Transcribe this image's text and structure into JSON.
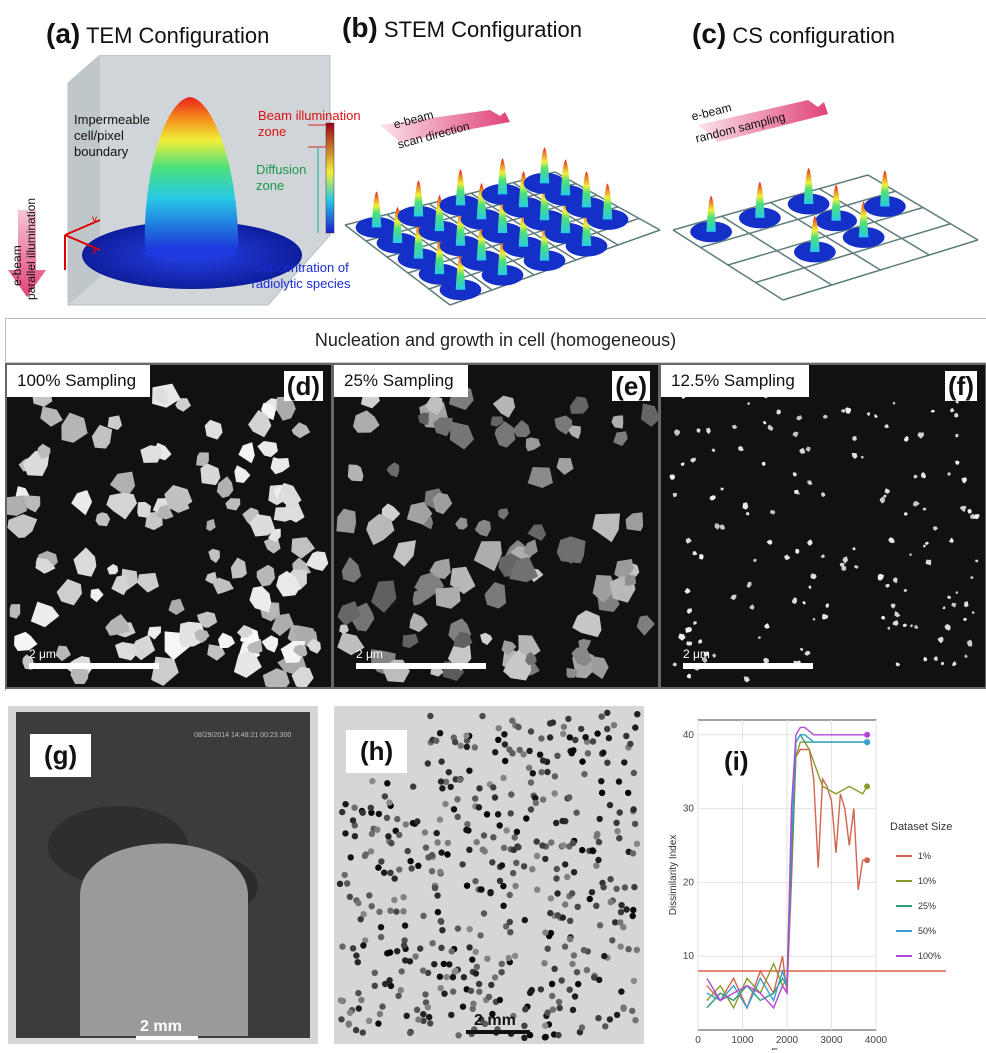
{
  "panels": {
    "a": {
      "letter": "(a)",
      "title": "TEM Configuration",
      "impermeable": "Impermeable cell/pixel boundary",
      "beam_zone": "Beam illumination zone",
      "diffusion_zone": "Diffusion zone",
      "concentration": "Concentration of radiolytic species",
      "ebeam": "e-beam",
      "parallel": "parallel illumination",
      "axis_y": "y",
      "axis_x": "x"
    },
    "b": {
      "letter": "(b)",
      "title": "STEM Configuration",
      "ebeam": "e-beam",
      "direction": "scan direction"
    },
    "c": {
      "letter": "(c)",
      "title": "CS configuration",
      "ebeam": "e-beam",
      "direction": "random sampling"
    }
  },
  "row2": {
    "title": "Nucleation and growth in cell (homogeneous)",
    "d": {
      "tag": "100% Sampling",
      "letter": "(d)",
      "scale": "2 μm"
    },
    "e": {
      "tag": "25% Sampling",
      "letter": "(e)",
      "scale": "2 μm"
    },
    "f": {
      "tag": "12.5% Sampling",
      "letter": "(f)",
      "scale": "2 μm"
    }
  },
  "row3": {
    "g": {
      "letter": "(g)",
      "scale": "2 mm",
      "stamp": "08/29/2014 14:48:21 00:23.300"
    },
    "h": {
      "letter": "(h)",
      "scale": "2 mm"
    },
    "i": {
      "letter": "(i)"
    }
  },
  "chart_data": {
    "type": "line",
    "xlabel": "Frame",
    "ylabel": "Dissimilarity Index",
    "xlim": [
      0,
      4000
    ],
    "ylim": [
      0,
      42
    ],
    "xticks": [
      0,
      1000,
      2000,
      3000,
      4000
    ],
    "yticks": [
      10,
      20,
      30,
      40
    ],
    "legend_title": "Dataset Size",
    "legend_position": "right",
    "threshold": 8,
    "threshold_color": "#e0604a",
    "series": [
      {
        "name": "1%",
        "color": "#d2644f",
        "x": [
          200,
          500,
          800,
          1100,
          1400,
          1700,
          1900,
          2000,
          2100,
          2200,
          2300,
          2400,
          2500,
          2600,
          2700,
          2800,
          2900,
          3000,
          3100,
          3200,
          3300,
          3400,
          3500,
          3600,
          3700,
          3800
        ],
        "y": [
          6,
          4,
          7,
          3,
          8,
          5,
          10,
          5,
          20,
          37,
          38,
          38,
          38,
          34,
          22,
          34,
          33,
          31,
          24,
          32,
          30,
          25,
          30,
          19,
          23,
          23
        ]
      },
      {
        "name": "10%",
        "color": "#8a9a2a",
        "x": [
          200,
          500,
          800,
          1100,
          1400,
          1700,
          1900,
          2000,
          2100,
          2200,
          2300,
          2400,
          2500,
          2800,
          3100,
          3400,
          3700,
          3800
        ],
        "y": [
          4,
          6,
          3,
          7,
          5,
          9,
          6,
          7,
          25,
          37,
          39,
          39,
          38,
          33,
          32,
          33,
          32,
          33
        ]
      },
      {
        "name": "25%",
        "color": "#2aa07a",
        "x": [
          200,
          500,
          800,
          1100,
          1400,
          1700,
          1900,
          2000,
          2100,
          2200,
          2300,
          2400,
          2600,
          3000,
          3400,
          3800
        ],
        "y": [
          3,
          5,
          4,
          6,
          4,
          5,
          7,
          6,
          22,
          39,
          40,
          39,
          39,
          39,
          39,
          39
        ]
      },
      {
        "name": "50%",
        "color": "#3a9fd0",
        "x": [
          200,
          500,
          800,
          1100,
          1400,
          1700,
          1900,
          2000,
          2100,
          2200,
          2300,
          2400,
          2600,
          3000,
          3400,
          3800
        ],
        "y": [
          5,
          4,
          6,
          3,
          7,
          4,
          8,
          6,
          26,
          39,
          40,
          40,
          39,
          39,
          39,
          39
        ]
      },
      {
        "name": "100%",
        "color": "#b04ad6",
        "x": [
          200,
          500,
          800,
          1100,
          1400,
          1700,
          1900,
          2000,
          2100,
          2200,
          2300,
          2400,
          2600,
          3000,
          3400,
          3800
        ],
        "y": [
          7,
          4,
          5,
          6,
          5,
          3,
          6,
          5,
          30,
          40,
          41,
          41,
          40,
          40,
          40,
          40
        ]
      }
    ]
  }
}
